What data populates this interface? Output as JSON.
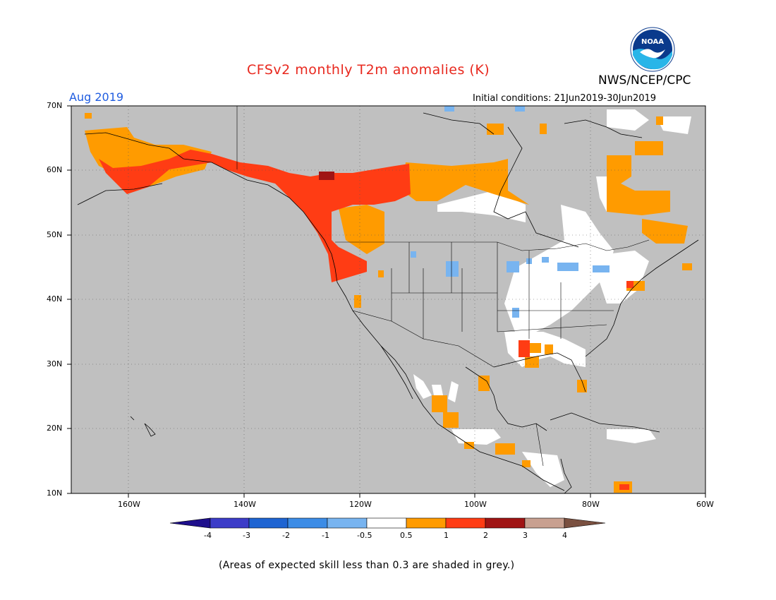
{
  "header": {
    "title": "CFSv2 monthly T2m anomalies (K)",
    "agency": "NWS/NCEP/CPC",
    "logo_text": "NOAA",
    "month_label": "Aug 2019",
    "initial_conditions": "Initial conditions: 21Jun2019-30Jun2019"
  },
  "colors": {
    "title": "#e8281e",
    "month_label": "#1f5ce0",
    "land_skill_grey": "#c0c0c0",
    "gridline": "#555555"
  },
  "map": {
    "lat_labels": [
      "70N",
      "60N",
      "50N",
      "40N",
      "30N",
      "20N",
      "10N"
    ],
    "lon_labels": [
      "160W",
      "140W",
      "120W",
      "100W",
      "80W",
      "60W"
    ],
    "lat_range": [
      10,
      70
    ],
    "lon_range": [
      -170,
      -60
    ],
    "grid": true
  },
  "colorbar": {
    "labels": [
      "-4",
      "-3",
      "-2",
      "-1",
      "-0.5",
      "0.5",
      "1",
      "2",
      "3",
      "4"
    ],
    "bin_colors": [
      "#1e0f8c",
      "#3c3cc8",
      "#1e64d2",
      "#3c8ce6",
      "#78b4f0",
      "#ffffff",
      "#ff9b00",
      "#ff3c14",
      "#a01414",
      "#c8a090",
      "#7a5040"
    ]
  },
  "footnote": "(Areas of expected skill less than 0.3 are shaded in grey.)"
}
